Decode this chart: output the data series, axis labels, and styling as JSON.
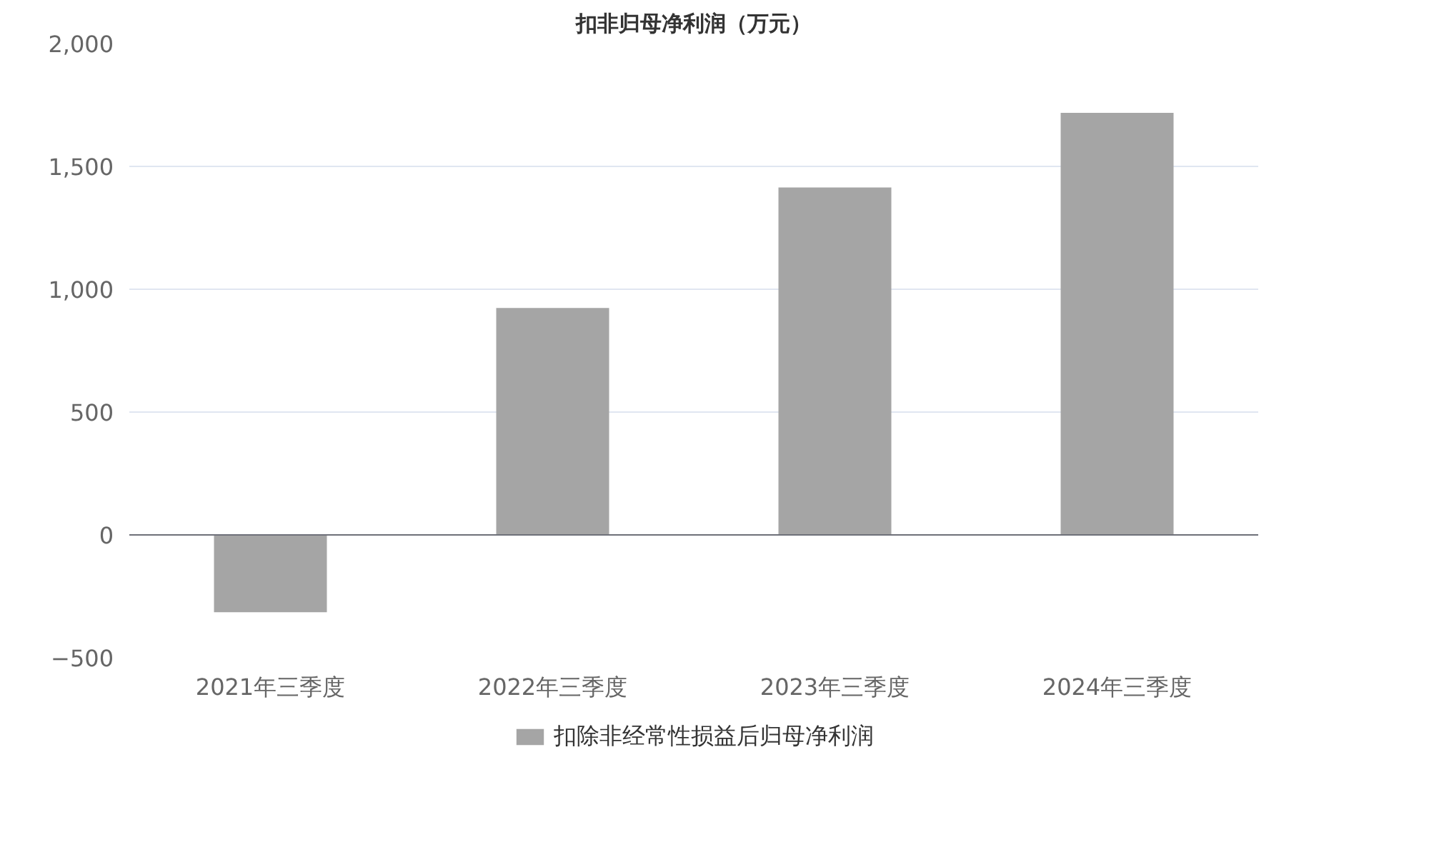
{
  "chart_data": {
    "type": "bar",
    "title": "扣非归母净利润（万元）",
    "categories": [
      "2021年三季度",
      "2022年三季度",
      "2023年三季度",
      "2024年三季度"
    ],
    "series": [
      {
        "name": "扣除非经常性损益后归母净利润",
        "color": "#a5a5a5",
        "values": [
          -315,
          924,
          1414,
          1718
        ]
      }
    ],
    "ylim": [
      -500,
      2000
    ],
    "yticks": [
      -500,
      0,
      500,
      {
        "value": 1000,
        "label": "1,000"
      },
      {
        "value": 1500,
        "label": "1,500"
      },
      {
        "value": 2000,
        "label": "2,000"
      }
    ],
    "grid": "y",
    "legend": "bottom"
  }
}
